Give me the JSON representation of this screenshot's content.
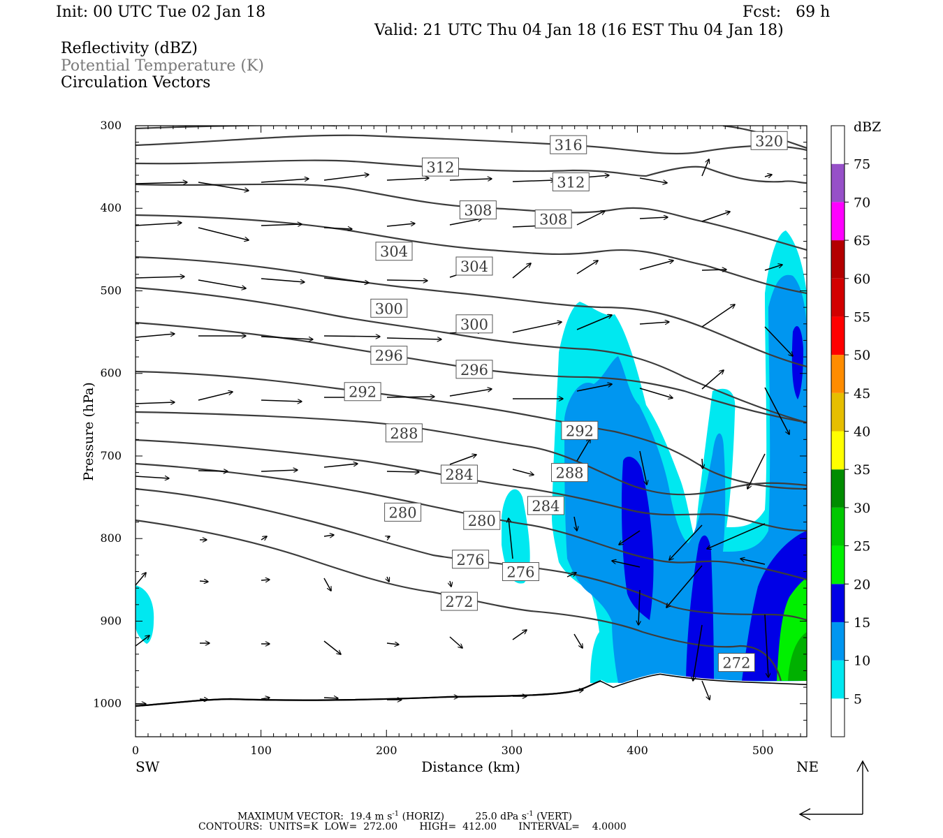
{
  "header": {
    "init": "Init: 00 UTC Tue 02 Jan 18",
    "fcst": "Fcst:   69 h",
    "valid": "Valid: 21 UTC Thu 04 Jan 18 (16 EST Thu 04 Jan 18)",
    "field1": "Reflectivity (dBZ)",
    "field2": "Potential Temperature (K)",
    "field3": "Circulation Vectors"
  },
  "footer": {
    "line1_a": "MAXIMUM VECTOR:  19.4 m s",
    "line1_b": " (HORIZ)          25.0 dPa s",
    "line1_c": " (VERT)",
    "sup": "-1",
    "line2": "CONTOURS:  UNITS=K  LOW=  272.00       HIGH=  412.00       INTERVAL=    4.0000"
  },
  "colors": {
    "cyan": "#00e8f0",
    "lightblue": "#0096f0",
    "blue": "#0000e6",
    "green": "#00f000",
    "darkgreen": "#00b000",
    "contour": "#3c3c3c"
  },
  "chart_data": {
    "type": "cross-section",
    "xlabel": "Distance (km)",
    "ylabel": "Pressure (hPa)",
    "xlim": [
      0,
      535
    ],
    "ylim": [
      1040,
      300
    ],
    "x_ticks": [
      "0",
      "100",
      "200",
      "300",
      "400",
      "500"
    ],
    "y_ticks": [
      "300",
      "400",
      "500",
      "600",
      "700",
      "800",
      "900",
      "1000"
    ],
    "x_end_labels": {
      "left": "SW",
      "right": "NE"
    },
    "colorbar": {
      "title": "dBZ",
      "levels": [
        "5",
        "10",
        "15",
        "20",
        "25",
        "30",
        "35",
        "40",
        "45",
        "50",
        "55",
        "60",
        "65",
        "70",
        "75"
      ],
      "colors": [
        "#ffffff",
        "#00e8f0",
        "#0096f0",
        "#0000e6",
        "#00f000",
        "#00c800",
        "#008c00",
        "#ffff00",
        "#e6be00",
        "#ff8c00",
        "#ff0000",
        "#d20000",
        "#b40000",
        "#ff00ff",
        "#9650c8",
        "#ffffff"
      ]
    },
    "theta_labels": [
      {
        "value": "320",
        "x": 505,
        "p": 318
      },
      {
        "value": "316",
        "x": 345,
        "p": 323
      },
      {
        "value": "312",
        "x": 243,
        "p": 350
      },
      {
        "value": "312",
        "x": 347,
        "p": 368
      },
      {
        "value": "308",
        "x": 273,
        "p": 402
      },
      {
        "value": "308",
        "x": 333,
        "p": 413
      },
      {
        "value": "304",
        "x": 206,
        "p": 452
      },
      {
        "value": "304",
        "x": 270,
        "p": 470
      },
      {
        "value": "300",
        "x": 202,
        "p": 521
      },
      {
        "value": "300",
        "x": 270,
        "p": 540
      },
      {
        "value": "296",
        "x": 202,
        "p": 578
      },
      {
        "value": "296",
        "x": 270,
        "p": 595
      },
      {
        "value": "292",
        "x": 181,
        "p": 622
      },
      {
        "value": "292",
        "x": 354,
        "p": 669
      },
      {
        "value": "288",
        "x": 214,
        "p": 672
      },
      {
        "value": "288",
        "x": 346,
        "p": 720
      },
      {
        "value": "284",
        "x": 258,
        "p": 722
      },
      {
        "value": "284",
        "x": 327,
        "p": 760
      },
      {
        "value": "280",
        "x": 213,
        "p": 768
      },
      {
        "value": "280",
        "x": 276,
        "p": 778
      },
      {
        "value": "276",
        "x": 267,
        "p": 825
      },
      {
        "value": "276",
        "x": 307,
        "p": 840
      },
      {
        "value": "272",
        "x": 258,
        "p": 876
      },
      {
        "value": "272",
        "x": 479,
        "p": 950
      }
    ]
  }
}
